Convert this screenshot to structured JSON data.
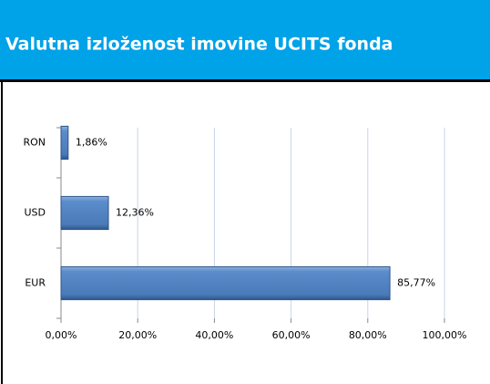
{
  "chart_data": {
    "type": "bar",
    "orientation": "horizontal",
    "title": "Valutna izloženost imovine UCITS fonda",
    "categories": [
      "RON",
      "USD",
      "EUR"
    ],
    "values": [
      1.86,
      12.36,
      85.77
    ],
    "value_labels": [
      "1,86%",
      "12,36%",
      "85,77%"
    ],
    "color": "#4f81bd",
    "xlim": [
      0,
      100
    ],
    "xticks": [
      {
        "value": 0,
        "label": "0,00%"
      },
      {
        "value": 20,
        "label": "20,00%"
      },
      {
        "value": 40,
        "label": "40,00%"
      },
      {
        "value": 60,
        "label": "60,00%"
      },
      {
        "value": 80,
        "label": "80,00%"
      },
      {
        "value": 100,
        "label": "100,00%"
      }
    ],
    "grid": true
  }
}
